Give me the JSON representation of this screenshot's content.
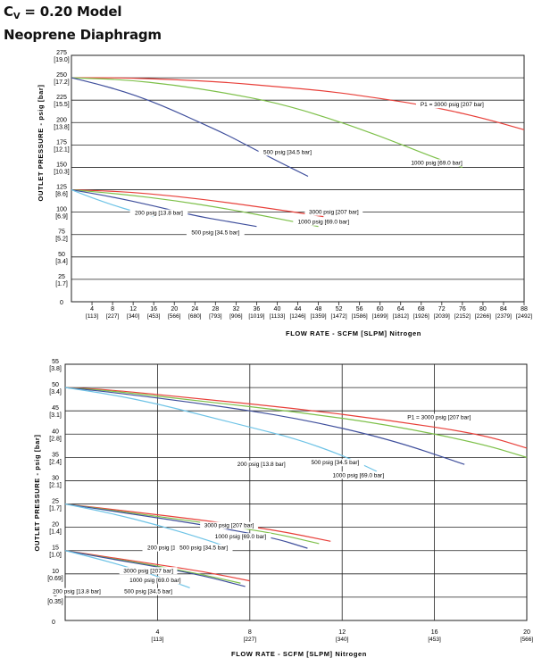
{
  "header": {
    "cv_prefix": "C",
    "cv_sub": "V",
    "cv_rest": " = 0.20 Model",
    "subtitle": "Neoprene Diaphragm"
  },
  "colors": {
    "p3000": "#e8403a",
    "p1000": "#7ec04a",
    "p500": "#3f4f9c",
    "p200": "#6ec3e6",
    "grid": "#222222"
  },
  "chart_data": [
    {
      "type": "line",
      "xlabel": "FLOW RATE - SCFM [SLPM] Nitrogen",
      "ylabel": "OUTLET PRESSURE - psig [bar]",
      "xlim": [
        0,
        88
      ],
      "ylim": [
        0,
        275
      ],
      "x_ticks": [
        {
          "v": 4,
          "a": "4",
          "b": "[113]"
        },
        {
          "v": 8,
          "a": "8",
          "b": "[227]"
        },
        {
          "v": 12,
          "a": "12",
          "b": "[340]"
        },
        {
          "v": 16,
          "a": "16",
          "b": "[453]"
        },
        {
          "v": 20,
          "a": "20",
          "b": "[566]"
        },
        {
          "v": 24,
          "a": "24",
          "b": "[680]"
        },
        {
          "v": 28,
          "a": "28",
          "b": "[793]"
        },
        {
          "v": 32,
          "a": "32",
          "b": "[906]"
        },
        {
          "v": 36,
          "a": "36",
          "b": "[1019]"
        },
        {
          "v": 40,
          "a": "40",
          "b": "[1133]"
        },
        {
          "v": 44,
          "a": "44",
          "b": "[1246]"
        },
        {
          "v": 48,
          "a": "48",
          "b": "[1359]"
        },
        {
          "v": 52,
          "a": "52",
          "b": "[1472]"
        },
        {
          "v": 56,
          "a": "56",
          "b": "[1586]"
        },
        {
          "v": 60,
          "a": "60",
          "b": "[1699]"
        },
        {
          "v": 64,
          "a": "64",
          "b": "[1812]"
        },
        {
          "v": 68,
          "a": "68",
          "b": "[1926]"
        },
        {
          "v": 72,
          "a": "72",
          "b": "[2039]"
        },
        {
          "v": 76,
          "a": "76",
          "b": "[2152]"
        },
        {
          "v": 80,
          "a": "80",
          "b": "[2266]"
        },
        {
          "v": 84,
          "a": "84",
          "b": "[2379]"
        },
        {
          "v": 88,
          "a": "88",
          "b": "[2492]"
        }
      ],
      "y_ticks": [
        {
          "v": 0,
          "a": "0",
          "b": ""
        },
        {
          "v": 25,
          "a": "25",
          "b": "[1.7]"
        },
        {
          "v": 50,
          "a": "50",
          "b": "[3.4]"
        },
        {
          "v": 75,
          "a": "75",
          "b": "[5.2]"
        },
        {
          "v": 100,
          "a": "100",
          "b": "[6.9]"
        },
        {
          "v": 125,
          "a": "125",
          "b": "[8.6]"
        },
        {
          "v": 150,
          "a": "150",
          "b": "[10.3]"
        },
        {
          "v": 175,
          "a": "175",
          "b": "[12.1]"
        },
        {
          "v": 200,
          "a": "200",
          "b": "[13.8]"
        },
        {
          "v": 225,
          "a": "225",
          "b": "[15.5]"
        },
        {
          "v": 250,
          "a": "250",
          "b": "[17.2]"
        },
        {
          "v": 275,
          "a": "275",
          "b": "[19.0]"
        }
      ],
      "series": [
        {
          "name": "P1 = 3000 psig [207 bar]",
          "color_key": "p3000",
          "x": [
            0,
            10,
            20,
            30,
            40,
            50,
            60,
            70,
            80,
            88
          ],
          "y": [
            250,
            250,
            248,
            245,
            240,
            235,
            227,
            218,
            205,
            192
          ]
        },
        {
          "name": "1000 psig [69.0 bar]",
          "color_key": "p1000",
          "x": [
            0,
            10,
            20,
            30,
            40,
            50,
            60,
            70,
            76
          ],
          "y": [
            250,
            248,
            242,
            233,
            222,
            205,
            185,
            162,
            150
          ]
        },
        {
          "name": "500 psig [34.5 bar]",
          "color_key": "p500",
          "x": [
            0,
            5,
            10,
            15,
            20,
            25,
            30,
            35,
            40,
            46
          ],
          "y": [
            250,
            243,
            235,
            225,
            213,
            200,
            187,
            172,
            157,
            140
          ]
        },
        {
          "name": "3000 psig [207 bar]",
          "color_key": "p3000",
          "x": [
            0,
            10,
            20,
            30,
            40,
            49
          ],
          "y": [
            125,
            123,
            118,
            111,
            103,
            95
          ]
        },
        {
          "name": "1000 psig [69.0 bar]",
          "color_key": "p1000",
          "x": [
            0,
            10,
            20,
            30,
            40,
            48
          ],
          "y": [
            125,
            120,
            113,
            104,
            93,
            84
          ]
        },
        {
          "name": "500 psig [34.5 bar]",
          "color_key": "p500",
          "x": [
            0,
            8,
            16,
            24,
            30,
            36
          ],
          "y": [
            125,
            117,
            107,
            96,
            90,
            84
          ]
        },
        {
          "name": "200 psig [13.8 bar]",
          "color_key": "p200",
          "x": [
            0,
            4,
            8,
            12,
            16
          ],
          "y": [
            125,
            116,
            108,
            101,
            95
          ]
        }
      ],
      "annotations": [
        {
          "text": "P1 = 3000 psig [207 bar]",
          "x": 74,
          "y": 218
        },
        {
          "text": "500 psig [34.5 bar]",
          "x": 42,
          "y": 165
        },
        {
          "text": "1000 psig [69.0 bar]",
          "x": 71,
          "y": 153
        },
        {
          "text": "3000 psig [207 bar]",
          "x": 51,
          "y": 98
        },
        {
          "text": "200 psig [13.8 bar]",
          "x": 17,
          "y": 97
        },
        {
          "text": "1000 psig [69.0 bar]",
          "x": 49,
          "y": 87
        },
        {
          "text": "500 psig [34.5 bar]",
          "x": 28,
          "y": 75
        }
      ]
    },
    {
      "type": "line",
      "xlabel": "FLOW RATE - SCFM [SLPM] Nitrogen",
      "ylabel": "OUTLET PRESSURE - psig [bar]",
      "xlim": [
        0,
        20
      ],
      "ylim": [
        0,
        55
      ],
      "x_ticks": [
        {
          "v": 0,
          "a": "0",
          "b": ""
        },
        {
          "v": 4,
          "a": "4",
          "b": "[113]"
        },
        {
          "v": 8,
          "a": "8",
          "b": "[227]"
        },
        {
          "v": 12,
          "a": "12",
          "b": "[340]"
        },
        {
          "v": 16,
          "a": "16",
          "b": "[453]"
        },
        {
          "v": 20,
          "a": "20",
          "b": "[566]"
        }
      ],
      "y_ticks": [
        {
          "v": 5,
          "a": "5",
          "b": "[0.35]"
        },
        {
          "v": 10,
          "a": "10",
          "b": "[0.69]"
        },
        {
          "v": 15,
          "a": "15",
          "b": "[1.0]"
        },
        {
          "v": 20,
          "a": "20",
          "b": "[1.4]"
        },
        {
          "v": 25,
          "a": "25",
          "b": "[1.7]"
        },
        {
          "v": 30,
          "a": "30",
          "b": "[2.1]"
        },
        {
          "v": 35,
          "a": "35",
          "b": "[2.4]"
        },
        {
          "v": 40,
          "a": "40",
          "b": "[2.8]"
        },
        {
          "v": 45,
          "a": "45",
          "b": "[3.1]"
        },
        {
          "v": 50,
          "a": "50",
          "b": "[3.4]"
        },
        {
          "v": 55,
          "a": "55",
          "b": "[3.8]"
        }
      ],
      "series": [
        {
          "name": "P1 = 3000 psig [207 bar]",
          "color_key": "p3000",
          "x": [
            0,
            2,
            6,
            10,
            14,
            18,
            20
          ],
          "y": [
            50,
            49.5,
            47.5,
            45.5,
            43,
            40,
            37
          ]
        },
        {
          "name": "1000 psig [69.0 bar]",
          "color_key": "p1000",
          "x": [
            0,
            2,
            6,
            10,
            14,
            18,
            20
          ],
          "y": [
            50,
            49.3,
            47,
            44.8,
            42,
            38,
            35
          ]
        },
        {
          "name": "500 psig [34.5 bar]",
          "color_key": "p500",
          "x": [
            0,
            2,
            6,
            10,
            14,
            17.3
          ],
          "y": [
            50,
            49,
            46.5,
            43.5,
            39,
            33.5
          ]
        },
        {
          "name": "200 psig [13.8 bar]",
          "color_key": "p200",
          "x": [
            0,
            2,
            4,
            6,
            8,
            10,
            12,
            13.5
          ],
          "y": [
            50,
            48.5,
            46.5,
            44,
            41.5,
            39,
            35.5,
            32
          ]
        },
        {
          "name": "3000 psig [207 bar]",
          "color_key": "p3000",
          "x": [
            0,
            3,
            6,
            9,
            11.5
          ],
          "y": [
            25,
            23.3,
            21.5,
            19.5,
            17
          ]
        },
        {
          "name": "1000 psig [69.0 bar]",
          "color_key": "p1000",
          "x": [
            0,
            3,
            6,
            9,
            11
          ],
          "y": [
            25,
            23,
            21,
            18.8,
            16.5
          ]
        },
        {
          "name": "500 psig [34.5 bar]",
          "color_key": "p500",
          "x": [
            0,
            3,
            6,
            9,
            10.5
          ],
          "y": [
            25,
            22.8,
            20.5,
            17.8,
            15.5
          ]
        },
        {
          "name": "200 psig [13.8 bar]",
          "color_key": "p200",
          "x": [
            0,
            2,
            4,
            6,
            7.2
          ],
          "y": [
            25,
            23,
            20.5,
            17.5,
            15.5
          ]
        },
        {
          "name": "3000 psig [207 bar]",
          "color_key": "p3000",
          "x": [
            0,
            2,
            4,
            6,
            8
          ],
          "y": [
            15,
            13.5,
            12,
            10.5,
            8.5
          ]
        },
        {
          "name": "1000 psig [69.0 bar]",
          "color_key": "p1000",
          "x": [
            0,
            2,
            4,
            6,
            7.6
          ],
          "y": [
            15,
            13.3,
            11.7,
            9.8,
            8
          ]
        },
        {
          "name": "500 psig [34.5 bar]",
          "color_key": "p500",
          "x": [
            0,
            2,
            4,
            6,
            7.8
          ],
          "y": [
            15,
            13.2,
            11.5,
            9.6,
            7.3
          ]
        },
        {
          "name": "200 psig [13.8 bar]",
          "color_key": "p200",
          "x": [
            0,
            2,
            4,
            5.4
          ],
          "y": [
            15,
            12.5,
            9.5,
            7
          ]
        }
      ],
      "annotations": [
        {
          "text": "P1 = 3000 psig [207 bar]",
          "x": 16.2,
          "y": 43.2
        },
        {
          "text": "200 psig [13.8 bar]",
          "x": 8.5,
          "y": 33.2
        },
        {
          "text": "500 psig [34.5 bar]",
          "x": 11.7,
          "y": 33.5
        },
        {
          "text": "1000 psig [69.0 bar]",
          "x": 12.7,
          "y": 30.8
        },
        {
          "text": "3000 psig [207 bar]",
          "x": 7.1,
          "y": 20.0
        },
        {
          "text": "1000 psig [69.0 bar]",
          "x": 7.6,
          "y": 17.6
        },
        {
          "text": "200 psig [13.8 bar]",
          "x": 4.6,
          "y": 15.2
        },
        {
          "text": "500 psig [34.5 bar]",
          "x": 6.0,
          "y": 15.2
        },
        {
          "text": "3000 psig [207 bar]",
          "x": 3.6,
          "y": 10.3
        },
        {
          "text": "1000 psig [69.0 bar]",
          "x": 3.9,
          "y": 8.2
        },
        {
          "text": "200 psig [13.8 bar]",
          "x": 0.5,
          "y": 5.8
        },
        {
          "text": "500 psig [34.5 bar]",
          "x": 3.6,
          "y": 5.8
        }
      ]
    }
  ]
}
